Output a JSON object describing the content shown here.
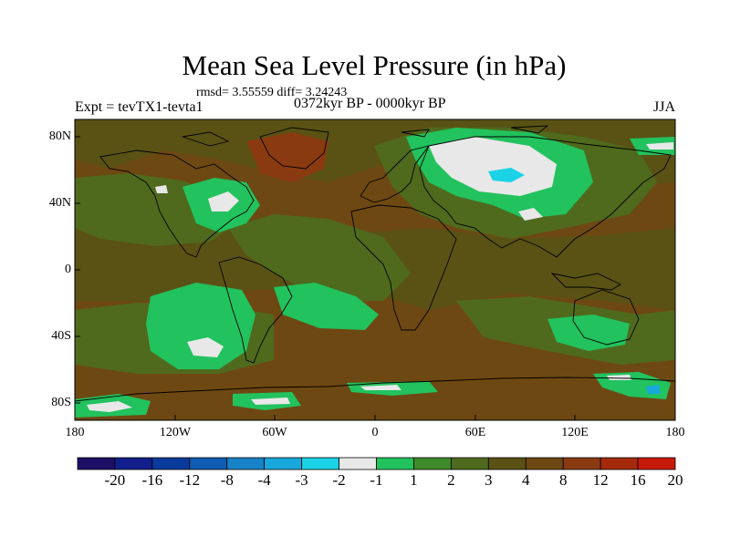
{
  "title": "Mean Sea Level Pressure (in hPa)",
  "stats": "rmsd= 3.55559 diff= 3.24243",
  "experiment": "Expt = tevTX1-tevta1",
  "period": "0372kyr BP - 0000kyr BP",
  "season": "JJA",
  "lat_labels": [
    "80N",
    "40N",
    "0",
    "40S",
    "80S"
  ],
  "lon_labels": [
    "180",
    "120W",
    "60W",
    "0",
    "60E",
    "120E",
    "180"
  ],
  "colorbar": {
    "colors": [
      "#1d0f66",
      "#121e8b",
      "#0a3a9c",
      "#0f5cb2",
      "#1883c8",
      "#19a8dc",
      "#1bd2e6",
      "#e8e8e8",
      "#22c25e",
      "#3f8a2a",
      "#4f6a1c",
      "#5a5214",
      "#6e4812",
      "#8a3a10",
      "#a52a0c",
      "#c81a08"
    ],
    "labels": [
      "-20",
      "-16",
      "-12",
      "-8",
      "-4",
      "-3",
      "-2",
      "-1",
      "1",
      "2",
      "3",
      "4",
      "8",
      "12",
      "16",
      "20"
    ]
  },
  "map_colors": {
    "ocean_base": "#6e4812",
    "mid": "#5a5214",
    "light_green": "#4f6a1c",
    "bright_green": "#22c25e",
    "near_zero": "#e8e8e8",
    "cyan": "#1bd2e6",
    "high": "#8a3a10"
  }
}
